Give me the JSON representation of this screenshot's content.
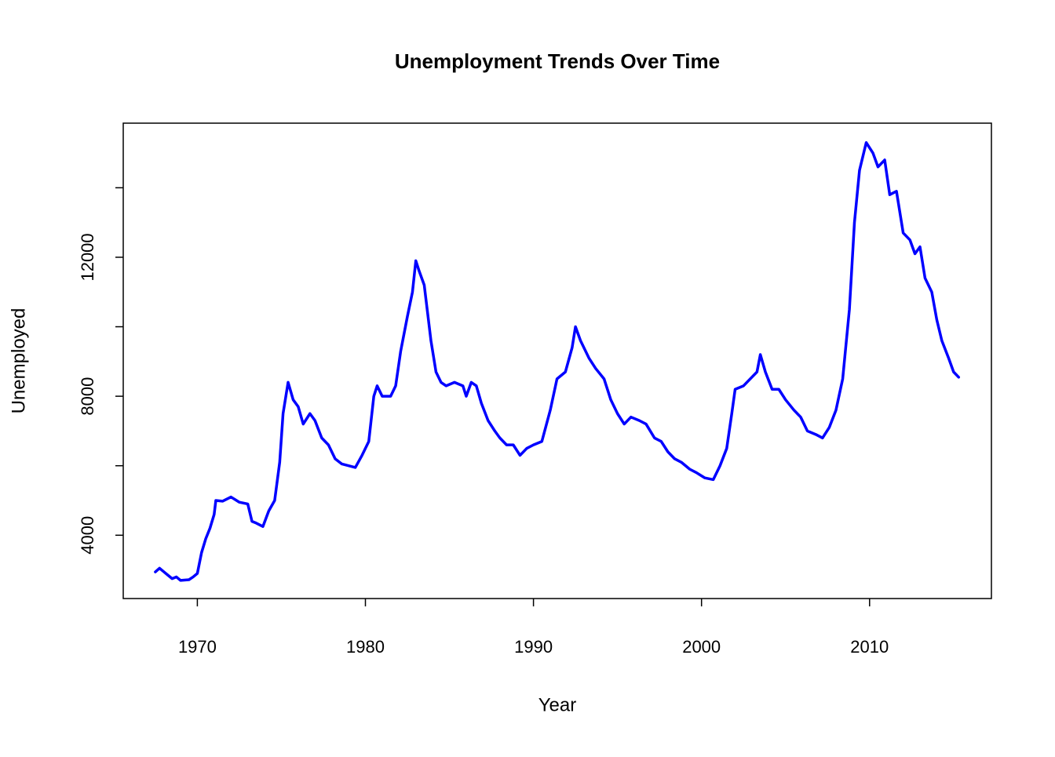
{
  "chart_data": {
    "type": "line",
    "title": "Unemployment Trends Over Time",
    "x_label": "Year",
    "y_label": "Unemployed",
    "color": "#0000ff",
    "xlim": [
      1965.59,
      2017.25
    ],
    "ylim": [
      2178,
      15859
    ],
    "xticks": [
      1970,
      1980,
      1990,
      2000,
      2010
    ],
    "yticks": [
      4000,
      8000,
      12000
    ],
    "yticks_unlabeled": [
      6000,
      10000,
      14000
    ],
    "x": [
      1967.5,
      1967.75,
      1968.0,
      1968.25,
      1968.5,
      1968.75,
      1969.0,
      1969.5,
      1969.75,
      1970.0,
      1970.25,
      1970.5,
      1970.75,
      1971.0,
      1971.1,
      1971.5,
      1972.0,
      1972.5,
      1973.0,
      1973.25,
      1973.5,
      1973.9,
      1974.25,
      1974.6,
      1974.9,
      1975.1,
      1975.4,
      1975.7,
      1976.0,
      1976.3,
      1976.7,
      1977.0,
      1977.4,
      1977.8,
      1978.2,
      1978.6,
      1979.0,
      1979.4,
      1979.8,
      1980.2,
      1980.5,
      1980.7,
      1981.0,
      1981.5,
      1981.8,
      1982.1,
      1982.5,
      1982.8,
      1983.0,
      1983.2,
      1983.5,
      1983.7,
      1983.9,
      1984.2,
      1984.5,
      1984.8,
      1985.3,
      1985.8,
      1986.0,
      1986.3,
      1986.6,
      1986.9,
      1987.3,
      1987.7,
      1988.0,
      1988.4,
      1988.8,
      1989.2,
      1989.6,
      1990.0,
      1990.5,
      1991.0,
      1991.4,
      1991.9,
      1992.3,
      1992.5,
      1992.8,
      1993.3,
      1993.7,
      1994.2,
      1994.6,
      1995.0,
      1995.4,
      1995.8,
      1996.3,
      1996.7,
      1997.2,
      1997.6,
      1998.0,
      1998.4,
      1998.8,
      1999.3,
      1999.7,
      2000.2,
      2000.7,
      2001.1,
      2001.5,
      2001.8,
      2002.0,
      2002.5,
      2002.9,
      2003.3,
      2003.5,
      2003.8,
      2004.2,
      2004.6,
      2005.0,
      2005.5,
      2005.9,
      2006.3,
      2006.8,
      2007.2,
      2007.6,
      2008.0,
      2008.4,
      2008.8,
      2009.1,
      2009.4,
      2009.8,
      2010.2,
      2010.5,
      2010.9,
      2011.2,
      2011.6,
      2012.0,
      2012.4,
      2012.7,
      2013.0,
      2013.3,
      2013.7,
      2014.0,
      2014.3,
      2014.7,
      2015.0,
      2015.3
    ],
    "values": [
      2944,
      3050,
      2950,
      2850,
      2750,
      2800,
      2700,
      2720,
      2800,
      2900,
      3500,
      3900,
      4200,
      4600,
      5000,
      4980,
      5100,
      4950,
      4900,
      4400,
      4350,
      4250,
      4700,
      5000,
      6100,
      7500,
      8400,
      7900,
      7700,
      7200,
      7500,
      7300,
      6800,
      6600,
      6200,
      6050,
      6000,
      5950,
      6300,
      6700,
      8000,
      8300,
      8000,
      8000,
      8300,
      9300,
      10300,
      11000,
      11900,
      11600,
      11200,
      10400,
      9600,
      8700,
      8400,
      8300,
      8400,
      8300,
      8000,
      8400,
      8300,
      7800,
      7300,
      7000,
      6800,
      6600,
      6600,
      6300,
      6500,
      6600,
      6700,
      7600,
      8500,
      8700,
      9400,
      10000,
      9600,
      9100,
      8800,
      8500,
      7900,
      7500,
      7200,
      7400,
      7300,
      7200,
      6800,
      6700,
      6400,
      6200,
      6100,
      5900,
      5800,
      5650,
      5600,
      6000,
      6500,
      7500,
      8200,
      8300,
      8500,
      8700,
      9200,
      8700,
      8200,
      8200,
      7900,
      7600,
      7400,
      7000,
      6900,
      6800,
      7100,
      7600,
      8500,
      10500,
      13000,
      14500,
      15300,
      15000,
      14600,
      14800,
      13800,
      13900,
      12700,
      12500,
      12100,
      12300,
      11400,
      11000,
      10200,
      9600,
      9100,
      8700,
      8549
    ]
  }
}
